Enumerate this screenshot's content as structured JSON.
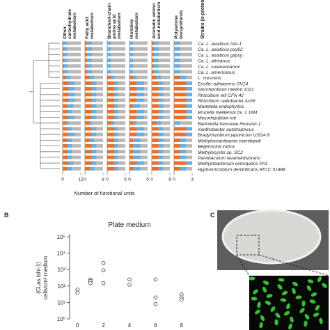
{
  "chart_data": [
    {
      "type": "bar-panel",
      "strains_title": "Strains (α-proteobacteria)",
      "xlabel": "Number of functional units",
      "strains": [
        "Ca. L. asiaticus Ishi-1",
        "Ca. L. asiaticus psy62",
        "Ca. L. asiaticus gxpsy",
        "Ca. L. africanus",
        "Ca. L. solanacearum",
        "Ca. L. americanus",
        "L. crescens",
        "Ensifer adhaerens OV14",
        "Sinorhizobium meliloti 1021",
        "Rhizobium etli CFN 42",
        "Rhizobium radiobacter Ach5",
        "Martelella endophytica",
        "Brucella melitensis bv. 1 16M",
        "Mesorhizobium loti",
        "Bartonella henselae Houston-1",
        "Xanthobacter autotrophicus",
        "Bradyrhizobium japonicum USDA 6",
        "Methyloceanibacter caenitepidi",
        "Beijerinckia indica",
        "Methylocystis sp. SC2",
        "Parvibaculum lavamentivorans",
        "Methylobacterium extorquens PA1",
        "Hyphomicrobium denitrificans ATCC 51888"
      ],
      "track_color": "#b9b9b9",
      "columns": [
        {
          "label": [
            "Other",
            "carbohydrate",
            "metabolism"
          ],
          "xlim": [
            0,
            12
          ],
          "xticks": [
            0,
            12
          ],
          "series": [
            {
              "color": "#e8702a",
              "values": [
                1,
                1,
                1,
                1,
                1,
                1,
                2,
                4,
                4,
                4,
                4,
                3,
                3,
                4,
                2,
                3,
                4,
                3,
                3,
                3,
                3,
                4,
                3
              ]
            },
            {
              "color": "#6aaee0",
              "values": [
                2,
                2,
                2,
                2,
                2,
                2,
                3,
                4,
                4,
                4,
                4,
                4,
                3,
                4,
                2,
                3,
                4,
                3,
                3,
                3,
                3,
                3,
                3
              ]
            }
          ]
        },
        {
          "label": [
            "Fatty acid",
            "metabolism"
          ],
          "xlim": [
            0,
            8
          ],
          "xticks": [
            0,
            8
          ],
          "series": [
            {
              "color": "#e8702a",
              "values": [
                1,
                1,
                1,
                1,
                1,
                1,
                2,
                3,
                3,
                3,
                3,
                3,
                3,
                3,
                2,
                3,
                3,
                2,
                3,
                3,
                3,
                3,
                2
              ]
            },
            {
              "color": "#6aaee0",
              "values": [
                2,
                2,
                2,
                2,
                2,
                2,
                2,
                2,
                2,
                2,
                2,
                2,
                2,
                2,
                1,
                2,
                2,
                2,
                2,
                2,
                2,
                2,
                2
              ]
            }
          ]
        },
        {
          "label": [
            "Branched-chain",
            "amino acid",
            "metabolism"
          ],
          "xlim": [
            0,
            5
          ],
          "xticks": [
            0,
            5
          ],
          "series": [
            {
              "color": "#e8702a",
              "values": [
                0,
                0,
                0,
                0,
                0,
                0,
                1,
                2,
                2,
                2,
                2,
                2,
                2,
                2,
                1,
                2,
                2,
                2,
                2,
                2,
                2,
                2,
                2
              ]
            },
            {
              "color": "#6aaee0",
              "values": [
                1,
                1,
                1,
                1,
                1,
                1,
                1,
                1,
                1,
                1,
                1,
                1,
                1,
                1,
                1,
                1,
                1,
                1,
                1,
                1,
                1,
                1,
                1
              ]
            }
          ]
        },
        {
          "label": [
            "Histidine",
            "metabolism"
          ],
          "xlim": [
            0,
            5
          ],
          "xticks": [
            0,
            5
          ],
          "series": [
            {
              "color": "#e8702a",
              "values": [
                0,
                0,
                0,
                0,
                0,
                0,
                1,
                2,
                2,
                2,
                2,
                1,
                2,
                2,
                1,
                2,
                2,
                1,
                1,
                1,
                1,
                2,
                1
              ]
            },
            {
              "color": "#6aaee0",
              "values": [
                1,
                1,
                1,
                1,
                1,
                1,
                1,
                2,
                2,
                2,
                2,
                2,
                2,
                2,
                1,
                2,
                2,
                2,
                2,
                2,
                2,
                2,
                2
              ]
            }
          ]
        },
        {
          "label": [
            "Aromatic amino",
            "acid metabolism"
          ],
          "xlim": [
            0,
            8
          ],
          "xticks": [
            0,
            8
          ],
          "series": [
            {
              "color": "#e8702a",
              "values": [
                1,
                1,
                1,
                1,
                1,
                1,
                2,
                3,
                3,
                3,
                3,
                3,
                3,
                3,
                2,
                3,
                3,
                3,
                3,
                3,
                3,
                3,
                3
              ]
            },
            {
              "color": "#6aaee0",
              "values": [
                2,
                2,
                2,
                2,
                2,
                2,
                2,
                2,
                2,
                2,
                2,
                2,
                2,
                2,
                2,
                2,
                2,
                2,
                2,
                2,
                2,
                2,
                2
              ]
            }
          ]
        },
        {
          "label": [
            "Polyamine",
            "biosynthesis"
          ],
          "xlim": [
            0,
            3
          ],
          "xticks": [
            0,
            3
          ],
          "series": [
            {
              "color": "#e8702a",
              "values": [
                0,
                0,
                0,
                0,
                0,
                0,
                1,
                2,
                2,
                2,
                2,
                2,
                2,
                2,
                0,
                2,
                2,
                1,
                1,
                1,
                1,
                2,
                1
              ]
            },
            {
              "color": "#6aaee0",
              "values": [
                1,
                1,
                1,
                1,
                1,
                1,
                1,
                1,
                1,
                1,
                1,
                1,
                1,
                1,
                1,
                1,
                1,
                1,
                1,
                1,
                1,
                1,
                1
              ]
            }
          ]
        }
      ]
    },
    {
      "type": "scatter",
      "panel": "B",
      "title": "Plate medium",
      "ylabel": [
        "(CLas Ishi-1)",
        "cells/cm² medium"
      ],
      "x": [
        0,
        0,
        1,
        1,
        1,
        2,
        2,
        2,
        4,
        4,
        6,
        6,
        6,
        8,
        8,
        8
      ],
      "y": [
        60,
        40,
        250,
        200,
        150,
        2500,
        900,
        150,
        250,
        120,
        250,
        20,
        8,
        30,
        20,
        15
      ],
      "xlim": [
        -0.6,
        8.6
      ],
      "xticks": [
        0,
        2,
        4,
        6,
        8
      ],
      "log_y": true,
      "ylim": [
        1,
        100000
      ],
      "yticks": [
        {
          "value": 1,
          "label": "10⁰"
        },
        {
          "value": 10,
          "label": "10¹"
        },
        {
          "value": 100,
          "label": "10²"
        },
        {
          "value": 1000,
          "label": "10³"
        },
        {
          "value": 10000,
          "label": "10⁴"
        },
        {
          "value": 100000,
          "label": "10⁵"
        }
      ]
    },
    {
      "type": "image",
      "panel": "C"
    }
  ]
}
